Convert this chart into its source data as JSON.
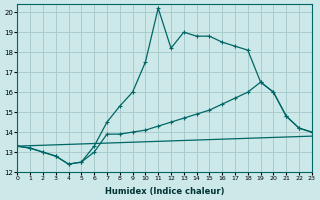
{
  "xlabel": "Humidex (Indice chaleur)",
  "bg_color": "#cce8e8",
  "grid_color": "#aacccc",
  "line_color": "#006666",
  "xlim": [
    0,
    23
  ],
  "ylim": [
    12,
    20.4
  ],
  "yticks": [
    12,
    13,
    14,
    15,
    16,
    17,
    18,
    19,
    20
  ],
  "xticks": [
    0,
    1,
    2,
    3,
    4,
    5,
    6,
    7,
    8,
    9,
    10,
    11,
    12,
    13,
    14,
    15,
    16,
    17,
    18,
    19,
    20,
    21,
    22,
    23
  ],
  "line1_x": [
    0,
    1,
    2,
    3,
    4,
    5,
    6,
    7,
    8,
    9,
    10,
    11,
    12,
    13,
    14,
    15,
    16,
    17,
    18,
    19,
    20,
    21,
    22,
    23
  ],
  "line1_y": [
    13.3,
    13.2,
    13.0,
    12.8,
    12.4,
    12.5,
    13.3,
    14.5,
    15.3,
    16.0,
    17.5,
    20.2,
    18.2,
    19.0,
    18.8,
    18.8,
    18.5,
    18.3,
    18.1,
    16.5,
    16.0,
    14.8,
    14.2,
    14.0
  ],
  "line2_x": [
    0,
    1,
    2,
    3,
    4,
    5,
    6,
    7,
    8,
    9,
    10,
    11,
    12,
    13,
    14,
    15,
    16,
    17,
    18,
    19,
    20,
    21,
    22,
    23
  ],
  "line2_y": [
    13.3,
    13.2,
    13.0,
    12.8,
    12.4,
    12.5,
    13.0,
    13.9,
    13.9,
    14.0,
    14.1,
    14.3,
    14.5,
    14.7,
    14.9,
    15.1,
    15.4,
    15.7,
    16.0,
    16.5,
    16.0,
    14.8,
    14.2,
    14.0
  ],
  "line3_x": [
    0,
    23
  ],
  "line3_y": [
    13.3,
    13.8
  ]
}
